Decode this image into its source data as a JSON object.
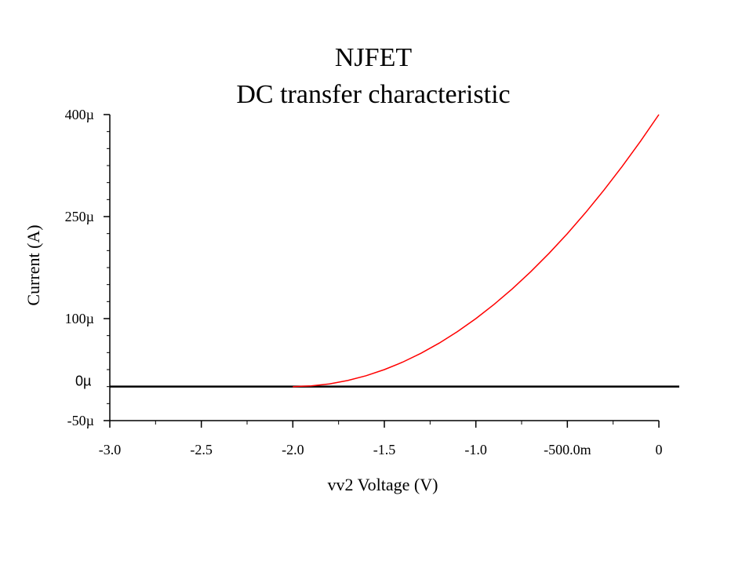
{
  "chart_data": {
    "type": "line",
    "title": "NJFET",
    "subtitle": "DC transfer characteristic",
    "xlabel": "vv2 Voltage (V)",
    "ylabel": "Current (A)",
    "xlim": [
      -3.0,
      0
    ],
    "ylim": [
      -50,
      400
    ],
    "y_unit": "µA",
    "x_ticks": [
      {
        "value": -3.0,
        "label": "-3.0"
      },
      {
        "value": -2.5,
        "label": "-2.5"
      },
      {
        "value": -2.0,
        "label": "-2.0"
      },
      {
        "value": -1.5,
        "label": "-1.5"
      },
      {
        "value": -1.0,
        "label": "-1.0"
      },
      {
        "value": -0.5,
        "label": "-500.0m"
      },
      {
        "value": 0,
        "label": "0"
      }
    ],
    "y_ticks": [
      {
        "value": 400,
        "label": "400µ"
      },
      {
        "value": 250,
        "label": "250µ"
      },
      {
        "value": 100,
        "label": "100µ"
      },
      {
        "value": -50,
        "label": "-50µ"
      }
    ],
    "zero_line": {
      "value": 0,
      "label": "0µ",
      "color": "#000000"
    },
    "series": [
      {
        "color": "#ff0000",
        "x": [
          -2.0,
          -1.9,
          -1.8,
          -1.7,
          -1.6,
          -1.5,
          -1.4,
          -1.3,
          -1.2,
          -1.1,
          -1.0,
          -0.9,
          -0.8,
          -0.7,
          -0.6,
          -0.5,
          -0.4,
          -0.3,
          -0.2,
          -0.1,
          0
        ],
        "y": [
          0,
          1,
          4,
          9,
          16,
          25,
          36,
          49,
          64,
          81,
          100,
          121,
          144,
          169,
          196,
          225,
          256,
          289,
          324,
          361,
          400
        ]
      }
    ],
    "grid": false,
    "legend": "none"
  }
}
